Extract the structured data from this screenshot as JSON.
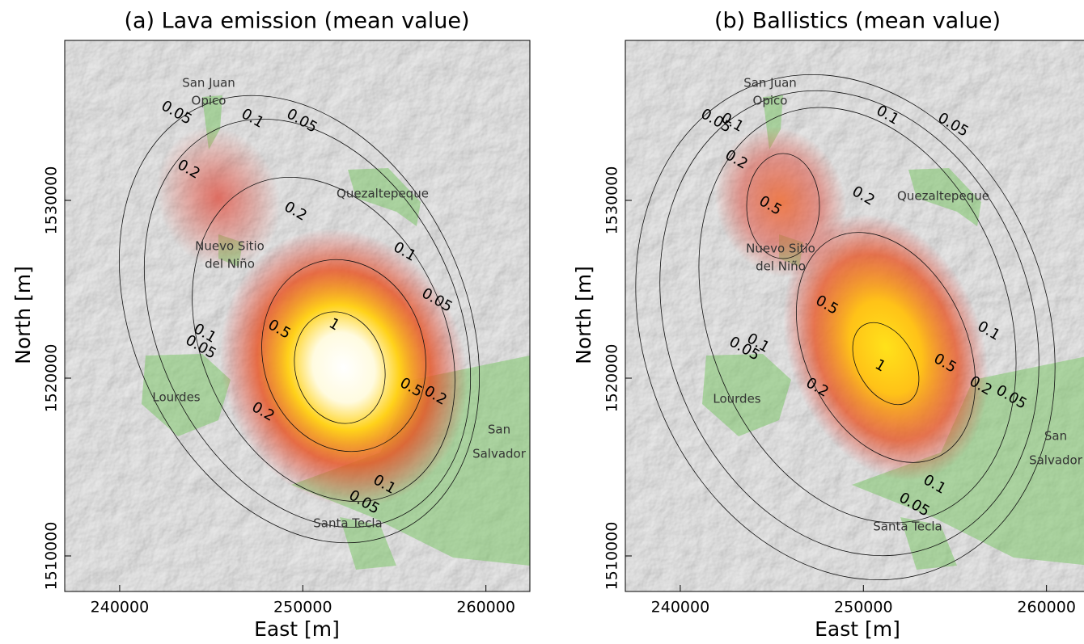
{
  "panels": [
    {
      "title": "(a) Lava emission (mean value)",
      "x_label": "East [m]",
      "y_label": "North [m]",
      "xlim": [
        237000,
        262400
      ],
      "ylim": [
        1508000,
        1539000
      ],
      "xticks": [
        240000,
        250000,
        260000
      ],
      "yticks": [
        1510000,
        1520000,
        1530000
      ],
      "places": [
        {
          "lines": [
            "San Juan",
            "Opico"
          ]
        },
        {
          "lines": [
            "Quezaltepeque"
          ]
        },
        {
          "lines": [
            "Nuevo Sitio",
            "del Niño"
          ]
        },
        {
          "lines": [
            "Lourdes"
          ]
        },
        {
          "lines": [
            "San",
            "Salvador"
          ]
        },
        {
          "lines": [
            "Santa Tecla"
          ]
        }
      ],
      "contour_labels": [
        "0.05",
        "0.1",
        "0.05",
        "0.2",
        "0.2",
        "0.1",
        "0.05",
        "0.5",
        "1",
        "0.1",
        "0.05",
        "0.5",
        "0.2",
        "0.2",
        "0.1",
        "0.05"
      ]
    },
    {
      "title": "(b) Ballistics (mean value)",
      "x_label": "East [m]",
      "y_label": "North [m]",
      "xlim": [
        237000,
        262400
      ],
      "ylim": [
        1508000,
        1539000
      ],
      "xticks": [
        240000,
        250000,
        260000
      ],
      "yticks": [
        1510000,
        1520000,
        1530000
      ],
      "places": [
        {
          "lines": [
            "San Juan",
            "Opico"
          ]
        },
        {
          "lines": [
            "Quezaltepeque"
          ]
        },
        {
          "lines": [
            "Nuevo Sitio",
            "del Niño"
          ]
        },
        {
          "lines": [
            "Lourdes"
          ]
        },
        {
          "lines": [
            "San",
            "Salvador"
          ]
        },
        {
          "lines": [
            "Santa Tecla"
          ]
        }
      ],
      "contour_labels": [
        "0.05",
        "0.1",
        "0.1",
        "0.05",
        "0.2",
        "0.5",
        "0.2",
        "0.5",
        "0.1",
        "0.1",
        "0.05",
        "1",
        "0.5",
        "0.2",
        "0.05",
        "0.2",
        "0.1",
        "0.05"
      ]
    }
  ]
}
